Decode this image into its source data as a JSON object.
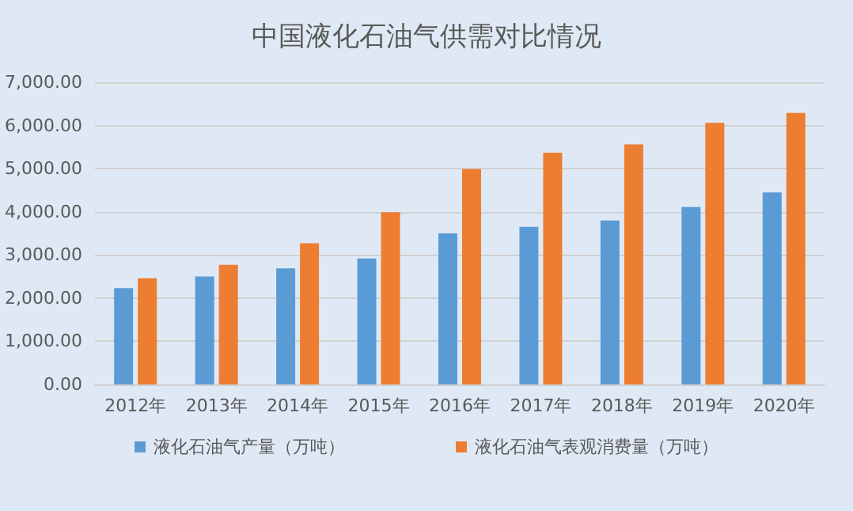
{
  "chart_data": {
    "type": "bar",
    "title": "中国液化石油气供需对比情况",
    "categories": [
      "2012年",
      "2013年",
      "2014年",
      "2015年",
      "2016年",
      "2017年",
      "2018年",
      "2019年",
      "2020年"
    ],
    "series": [
      {
        "name": "液化石油气产量（万吨）",
        "color": "#5b9bd5",
        "values": [
          2230,
          2500,
          2690,
          2920,
          3500,
          3650,
          3800,
          4110,
          4450
        ]
      },
      {
        "name": "液化石油气表观消费量（万吨）",
        "color": "#ed7d31",
        "values": [
          2460,
          2770,
          3270,
          3990,
          4990,
          5370,
          5560,
          6060,
          6290
        ]
      }
    ],
    "ylim": [
      0,
      7000
    ],
    "yticks": [
      {
        "value": 0,
        "label": "0.00"
      },
      {
        "value": 1000,
        "label": "1,000.00"
      },
      {
        "value": 2000,
        "label": "2,000.00"
      },
      {
        "value": 3000,
        "label": "3,000.00"
      },
      {
        "value": 4000,
        "label": "4,000.00"
      },
      {
        "value": 5000,
        "label": "5,000.00"
      },
      {
        "value": 6000,
        "label": "6,000.00"
      },
      {
        "value": 7000,
        "label": "7,000.00"
      }
    ],
    "grid": "y",
    "legend": "bottom"
  }
}
